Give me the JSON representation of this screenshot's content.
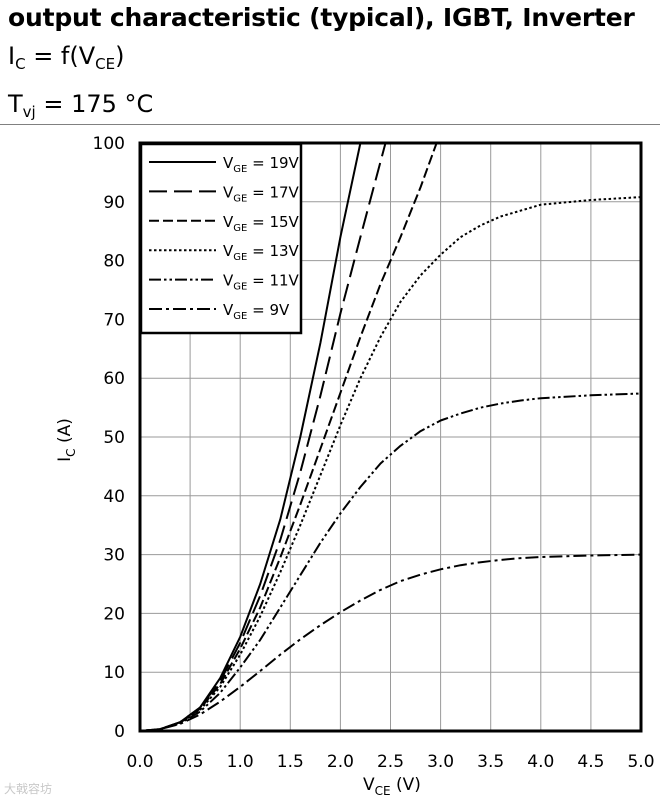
{
  "header": {
    "title": "output characteristic (typical), IGBT, Inverter",
    "line2": {
      "main": "I",
      "sub": "C",
      "rest": " = f(V",
      "sub2": "CE",
      "end": ")"
    },
    "line3": {
      "main": "T",
      "sub": "vj",
      "rest": " = 175 °C"
    }
  },
  "watermark": "大戟容坊",
  "chart_data": {
    "type": "line",
    "xlabel": {
      "main": "V",
      "sub": "CE",
      "rest": " (V)"
    },
    "ylabel": {
      "main": "I",
      "sub": "C",
      "rest": " (A)"
    },
    "xlim": [
      0,
      5
    ],
    "ylim": [
      0,
      100
    ],
    "xticks": [
      "0.0",
      "0.5",
      "1.0",
      "1.5",
      "2.0",
      "2.5",
      "3.0",
      "3.5",
      "4.0",
      "4.5",
      "5.0"
    ],
    "yticks": [
      "0",
      "10",
      "20",
      "30",
      "40",
      "50",
      "60",
      "70",
      "80",
      "90",
      "100"
    ],
    "grid": true,
    "legend_position": "top-left",
    "series": [
      {
        "label": "V",
        "sub": "GE",
        "value": " = 19V",
        "dash": "solid",
        "x": [
          0,
          0.2,
          0.4,
          0.6,
          0.8,
          1.0,
          1.2,
          1.4,
          1.6,
          1.8,
          2.0,
          2.2
        ],
        "y": [
          0,
          0.3,
          1.5,
          4,
          9,
          16,
          25,
          36,
          50,
          66,
          84,
          100
        ]
      },
      {
        "label": "V",
        "sub": "GE",
        "value": " = 17V",
        "dash": "longdash",
        "x": [
          0,
          0.2,
          0.4,
          0.6,
          0.8,
          1.0,
          1.2,
          1.4,
          1.6,
          1.8,
          2.0,
          2.2,
          2.45
        ],
        "y": [
          0,
          0.3,
          1.5,
          4,
          8.5,
          15,
          23,
          32.5,
          44,
          57,
          71,
          84,
          100
        ]
      },
      {
        "label": "V",
        "sub": "GE",
        "value": " = 15V",
        "dash": "dash",
        "x": [
          0,
          0.2,
          0.4,
          0.6,
          0.8,
          1.0,
          1.2,
          1.4,
          1.6,
          1.8,
          2.0,
          2.2,
          2.4,
          2.6,
          2.8,
          2.96
        ],
        "y": [
          0,
          0.3,
          1.4,
          3.8,
          8,
          14,
          21,
          29.5,
          38.5,
          48,
          57.5,
          67,
          76,
          84,
          92.5,
          100
        ]
      },
      {
        "label": "V",
        "sub": "GE",
        "value": " = 13V",
        "dash": "dot",
        "x": [
          0,
          0.2,
          0.4,
          0.6,
          0.8,
          1.0,
          1.2,
          1.4,
          1.6,
          1.8,
          2.0,
          2.2,
          2.4,
          2.6,
          2.8,
          3.0,
          3.2,
          3.4,
          3.6,
          3.8,
          4.0,
          4.5,
          5.0
        ],
        "y": [
          0,
          0.3,
          1.4,
          3.6,
          7.5,
          13,
          19.5,
          27,
          35,
          43.5,
          52,
          60,
          67,
          73,
          77.5,
          81,
          84,
          86,
          87.5,
          88.5,
          89.5,
          90.3,
          90.8
        ]
      },
      {
        "label": "V",
        "sub": "GE",
        "value": " = 11V",
        "dash": "dashdotdot",
        "x": [
          0,
          0.2,
          0.4,
          0.6,
          0.8,
          1.0,
          1.2,
          1.4,
          1.6,
          1.8,
          2.0,
          2.2,
          2.4,
          2.6,
          2.8,
          3.0,
          3.2,
          3.4,
          3.6,
          3.8,
          4.0,
          4.5,
          5.0
        ],
        "y": [
          0,
          0.3,
          1.3,
          3.3,
          6.5,
          10.8,
          15.5,
          21,
          26.5,
          32,
          37,
          41.5,
          45.5,
          48.5,
          51,
          52.8,
          54,
          55,
          55.7,
          56.2,
          56.6,
          57.1,
          57.4
        ]
      },
      {
        "label": "V",
        "sub": "GE",
        "value": " = 9V",
        "dash": "dashdot",
        "x": [
          0,
          0.2,
          0.4,
          0.6,
          0.8,
          1.0,
          1.2,
          1.4,
          1.6,
          1.8,
          2.0,
          2.2,
          2.4,
          2.6,
          2.8,
          3.0,
          3.2,
          3.4,
          3.6,
          3.8,
          4.0,
          4.5,
          5.0
        ],
        "y": [
          0,
          0.3,
          1.2,
          2.8,
          5,
          7.5,
          10.2,
          13,
          15.6,
          18,
          20.2,
          22.2,
          24,
          25.5,
          26.6,
          27.5,
          28.2,
          28.7,
          29.1,
          29.4,
          29.6,
          29.85,
          30
        ]
      }
    ]
  }
}
